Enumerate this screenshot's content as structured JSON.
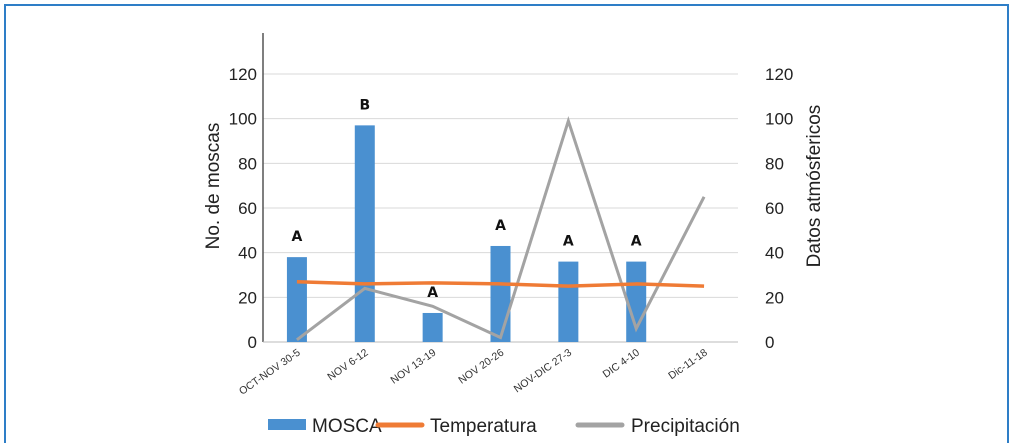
{
  "chart_data": {
    "type": "bar",
    "categories": [
      "OCT-NOV 30-5",
      "NOV 6-12",
      "NOV 13-19",
      "NOV 20-26",
      "NOV-DIC 27-3",
      "DIC 4-10",
      "Dic-11-18"
    ],
    "series": [
      {
        "name": "MOSCA",
        "kind": "bar",
        "axis": "left",
        "color": "#4a90d0",
        "values": [
          38,
          97,
          13,
          43,
          36,
          36,
          null
        ]
      },
      {
        "name": "Temperatura",
        "kind": "line",
        "axis": "right",
        "color": "#ef7b35",
        "values": [
          27,
          26,
          26.5,
          26,
          25,
          26,
          25
        ]
      },
      {
        "name": "Precipitación",
        "kind": "line",
        "axis": "right",
        "color": "#a3a3a3",
        "values": [
          1,
          24,
          16,
          2,
          99,
          6,
          65
        ]
      }
    ],
    "bar_labels": [
      "A",
      "B",
      "A",
      "A",
      "A",
      "A",
      ""
    ],
    "ylabel": "No. de moscas",
    "y2label": "Datos atmósfericos",
    "ylim": [
      0,
      120
    ],
    "y2lim": [
      0,
      120
    ],
    "yticks": [
      "0",
      "20",
      "40",
      "60",
      "80",
      "100",
      "120"
    ],
    "y2ticks": [
      "0",
      "20",
      "40",
      "60",
      "80",
      "100",
      "120"
    ],
    "grid": true,
    "legend_position": "bottom"
  }
}
